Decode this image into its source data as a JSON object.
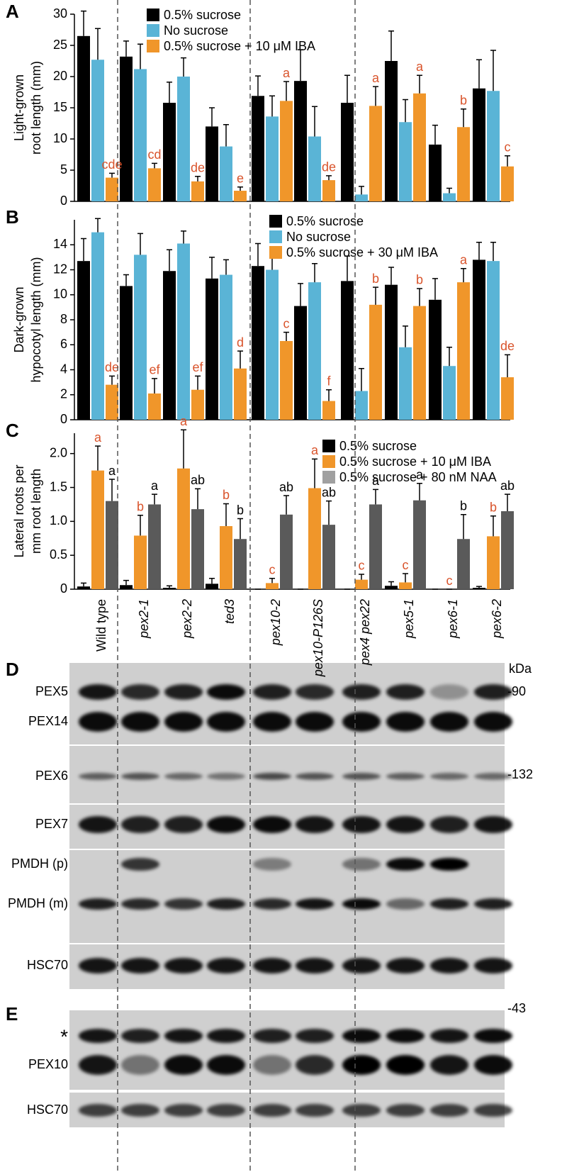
{
  "chart_data": [
    {
      "type": "bar",
      "panel": "A",
      "ylabel": [
        "Light-grown",
        "root length (mm)"
      ],
      "ylim": [
        0,
        30
      ],
      "yticks": [
        0,
        5,
        10,
        15,
        20,
        25,
        30
      ],
      "legend": "upper center",
      "series": [
        {
          "name": "0.5% sucrose",
          "color": "#000000",
          "values": [
            26.5,
            23.2,
            15.8,
            12,
            16.9,
            19.3,
            15.8,
            22.5,
            9.1,
            18.1
          ],
          "errors": [
            4,
            2.5,
            3.3,
            3,
            3.2,
            5,
            4.4,
            4.8,
            3.1,
            4.6
          ]
        },
        {
          "name": "No sucrose",
          "color": "#5ab4d6",
          "values": [
            22.7,
            21.2,
            20,
            8.8,
            13.6,
            10.4,
            1.1,
            12.7,
            1.3,
            17.7
          ],
          "errors": [
            5,
            4,
            3,
            3.5,
            3.3,
            4.8,
            1.3,
            3.6,
            0.8,
            6.5
          ]
        },
        {
          "name": "0.5% sucrose + 10 μM IBA",
          "color": "#f0962a",
          "values": [
            3.8,
            5.3,
            3.2,
            1.7,
            16.1,
            3.4,
            15.3,
            17.3,
            11.9,
            5.6
          ],
          "errors": [
            0.7,
            0.8,
            0.8,
            0.6,
            3.1,
            0.7,
            3.1,
            2.9,
            2.9,
            1.7
          ],
          "letters": [
            "cde",
            "cd",
            "de",
            "e",
            "a",
            "de",
            "a",
            "a",
            "b",
            "c"
          ]
        }
      ]
    },
    {
      "type": "bar",
      "panel": "B",
      "ylabel": [
        "Dark-grown",
        "hypocotyl length (mm)"
      ],
      "ylim": [
        0,
        16
      ],
      "yticks": [
        0,
        2,
        4,
        6,
        8,
        10,
        12,
        14
      ],
      "legend": "upper right",
      "series": [
        {
          "name": "0.5% sucrose",
          "color": "#000000",
          "values": [
            12.7,
            10.7,
            11.9,
            11.3,
            12.3,
            9.1,
            11.1,
            10.8,
            9.6,
            12.8
          ],
          "errors": [
            1.8,
            0.9,
            1.7,
            1.7,
            1.8,
            1.8,
            2,
            1.4,
            1.7,
            1.4
          ]
        },
        {
          "name": "No sucrose",
          "color": "#5ab4d6",
          "values": [
            15,
            13.2,
            14.1,
            11.6,
            12,
            11,
            2.3,
            5.8,
            4.3,
            12.7
          ],
          "errors": [
            1.1,
            1.7,
            1,
            1.2,
            1,
            1.5,
            1.8,
            1.7,
            1.5,
            1.5
          ]
        },
        {
          "name": "0.5% sucrose + 30 μM IBA",
          "color": "#f0962a",
          "values": [
            2.8,
            2.1,
            2.4,
            4.1,
            6.3,
            1.5,
            9.2,
            9.1,
            11,
            3.4
          ],
          "errors": [
            0.7,
            1.2,
            1.1,
            1.4,
            0.7,
            0.9,
            1.4,
            1.4,
            1.1,
            1.8
          ],
          "letters": [
            "de",
            "ef",
            "ef",
            "d",
            "c",
            "f",
            "b",
            "b",
            "a",
            "de"
          ]
        }
      ]
    },
    {
      "type": "bar",
      "panel": "C",
      "ylabel": [
        "Lateral roots per",
        "mm root length"
      ],
      "ylim": [
        0,
        2.3
      ],
      "yticks": [
        0,
        0.5,
        {
          "value": 1,
          "label": "1.0"
        },
        1.5,
        {
          "value": 2,
          "label": "2.0"
        }
      ],
      "legend": "upper right",
      "categories": [
        "Wild  type",
        "pex2-1",
        "pex2-2",
        "ted3",
        "pex10-2",
        "pex10-P126S",
        "pex4 pex22",
        "pex5-1",
        "pex6-1",
        "pex6-2"
      ],
      "series": [
        {
          "name": "0.5% sucrose",
          "color": "#000000",
          "values": [
            0.04,
            0.06,
            0.02,
            0.08,
            0,
            0,
            0,
            0.05,
            0,
            0.02
          ],
          "errors": [
            0.05,
            0.07,
            0.03,
            0.08,
            0,
            0,
            0,
            0.06,
            0,
            0.02
          ]
        },
        {
          "name": "0.5% sucrose + 10 μM IBA",
          "color": "#f0962a",
          "values": [
            1.75,
            0.79,
            1.78,
            0.93,
            0.09,
            1.49,
            0.14,
            0.1,
            0,
            0.78
          ],
          "errors": [
            0.36,
            0.3,
            0.57,
            0.33,
            0.07,
            0.43,
            0.08,
            0.13,
            0,
            0.3
          ],
          "letters": [
            "a",
            "b",
            "a",
            "b",
            "c",
            "a",
            "c",
            "c",
            "c",
            "b"
          ]
        },
        {
          "name": "0.5% sucrose + 80 nM NAA",
          "color": "#5a5a5a",
          "legend_color": "#a0a0a0",
          "values": [
            1.3,
            1.25,
            1.18,
            0.74,
            1.1,
            0.95,
            1.25,
            1.31,
            0.74,
            1.15
          ],
          "errors": [
            0.32,
            0.15,
            0.3,
            0.3,
            0.28,
            0.35,
            0.22,
            0.25,
            0.36,
            0.25
          ],
          "letters": [
            "a",
            "a",
            "ab",
            "b",
            "ab",
            "ab",
            "a",
            "a",
            "b",
            "ab"
          ]
        }
      ]
    }
  ],
  "panel_d": {
    "label": "D",
    "unit": "kDa",
    "rows": [
      "PEX5",
      "PEX14",
      "PEX6",
      "PEX7",
      "PMDH (p)",
      "PMDH (m)",
      "HSC70"
    ],
    "markers": [
      "-90",
      "-132"
    ]
  },
  "panel_e": {
    "label": "E",
    "rows": [
      "*",
      "PEX10",
      "HSC70"
    ],
    "markers": [
      "-43"
    ]
  }
}
